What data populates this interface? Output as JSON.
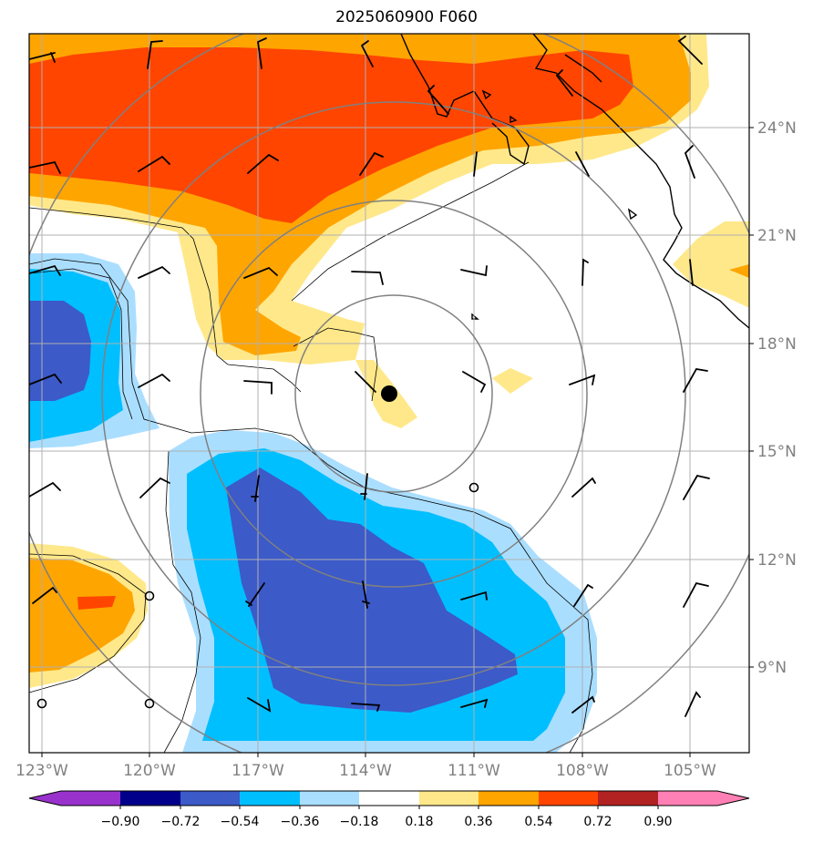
{
  "title": "2025060900 F060",
  "map": {
    "lon_labels": [
      "123°W",
      "120°W",
      "117°W",
      "114°W",
      "111°W",
      "108°W",
      "105°W"
    ],
    "lat_labels": [
      "24°N",
      "21°N",
      "18°N",
      "15°N",
      "12°N",
      "9°N"
    ],
    "gridlines": true,
    "range_rings": 4,
    "storm_center_marker": true
  },
  "colorbar": {
    "ticks": [
      "−0.90",
      "−0.72",
      "−0.54",
      "−0.36",
      "−0.18",
      "0.18",
      "0.36",
      "0.54",
      "0.72",
      "0.90"
    ],
    "colors": [
      "#9932cc",
      "#00008b",
      "#3c5ac8",
      "#00bfff",
      "#aadeff",
      "#ffffff",
      "#ffe88a",
      "#ffa500",
      "#ff4500",
      "#b22222",
      "#ff80b4"
    ],
    "extend": "both"
  }
}
